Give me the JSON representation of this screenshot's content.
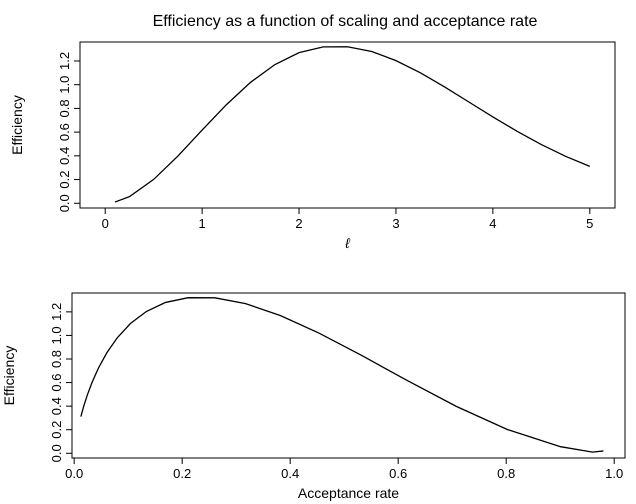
{
  "chart_data": [
    {
      "type": "line",
      "title": "Efficiency as a function of scaling and acceptance rate",
      "x_label": "ℓ",
      "y_label": "Efficiency",
      "color": "#000000",
      "x": [
        0.1,
        0.25,
        0.5,
        0.75,
        1,
        1.25,
        1.5,
        1.75,
        2,
        2.25,
        2.5,
        2.75,
        3,
        3.25,
        3.5,
        3.75,
        4,
        4.25,
        4.5,
        4.75,
        5
      ],
      "series": [
        {
          "name": "Efficiency",
          "color": "#000000",
          "values": [
            0.01,
            0.056,
            0.201,
            0.398,
            0.617,
            0.831,
            1.02,
            1.169,
            1.27,
            1.319,
            1.32,
            1.28,
            1.203,
            1.101,
            0.982,
            0.855,
            0.728,
            0.607,
            0.495,
            0.396,
            0.311
          ]
        }
      ],
      "xlim": [
        -0.26,
        5.26
      ],
      "ylim": [
        -0.04,
        1.36
      ],
      "xticks": [
        0,
        1,
        2,
        3,
        4,
        5
      ],
      "yticks": [
        {
          "value": 0,
          "label": "0.0"
        },
        0.2,
        0.4,
        0.6,
        0.8,
        {
          "value": 1,
          "label": "1.0"
        },
        1.2
      ]
    },
    {
      "type": "line",
      "x_label": "Acceptance rate",
      "y_label": "Efficiency",
      "color": "#000000",
      "x": [
        0.0124,
        0.0175,
        0.0244,
        0.0336,
        0.0455,
        0.0608,
        0.0802,
        0.1042,
        0.1336,
        0.1692,
        0.2112,
        0.2606,
        0.3174,
        0.3816,
        0.4532,
        0.532,
        0.617,
        0.7076,
        0.8026,
        0.9006,
        0.96,
        0.98
      ],
      "series": [
        {
          "name": "Efficiency",
          "color": "#000000",
          "values": [
            0.311,
            0.396,
            0.495,
            0.607,
            0.728,
            0.855,
            0.982,
            1.101,
            1.203,
            1.28,
            1.32,
            1.319,
            1.27,
            1.169,
            1.02,
            0.831,
            0.617,
            0.398,
            0.201,
            0.056,
            0.01,
            0.02
          ]
        }
      ],
      "xlim": [
        -0.004,
        1.02
      ],
      "ylim": [
        -0.04,
        1.36
      ],
      "xticks": [
        {
          "value": 0,
          "label": "0.0"
        },
        0.2,
        0.4,
        0.6,
        0.8,
        {
          "value": 1,
          "label": "1.0"
        }
      ],
      "yticks": [
        {
          "value": 0,
          "label": "0.0"
        },
        0.2,
        0.4,
        0.6,
        0.8,
        {
          "value": 1,
          "label": "1.0"
        },
        1.2
      ]
    }
  ]
}
